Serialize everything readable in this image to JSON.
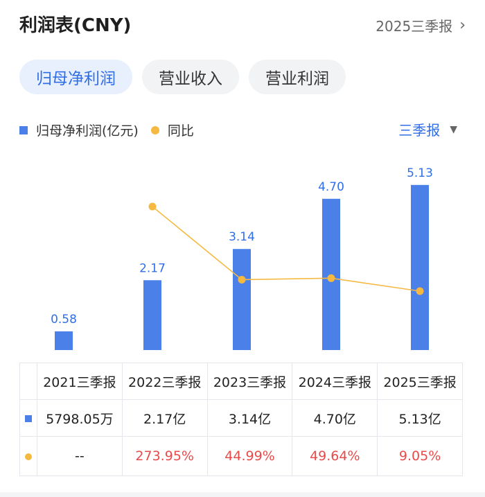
{
  "header": {
    "title": "利润表(CNY)",
    "period_label": "2025三季报",
    "chevron": "chevron-right-icon"
  },
  "tabs": [
    {
      "label": "归母净利润",
      "active": true
    },
    {
      "label": "营业收入",
      "active": false
    },
    {
      "label": "营业利润",
      "active": false
    }
  ],
  "legend": {
    "bar_label": "归母净利润(亿元)",
    "line_label": "同比"
  },
  "selector": {
    "label": "三季报",
    "icon": "caret-down-icon"
  },
  "colors": {
    "bar": "#4a80e8",
    "line": "#f5b942",
    "accent": "#2f6ee8",
    "negative_red": "#e84a4a"
  },
  "chart_data": {
    "type": "bar",
    "categories": [
      "2021三季报",
      "2022三季报",
      "2023三季报",
      "2024三季报",
      "2025三季报"
    ],
    "series": [
      {
        "name": "归母净利润(亿元)",
        "type": "bar",
        "values": [
          0.58,
          2.17,
          3.14,
          4.7,
          5.13
        ],
        "labels": [
          "0.58",
          "2.17",
          "3.14",
          "4.70",
          "5.13"
        ]
      },
      {
        "name": "同比",
        "type": "line",
        "values": [
          null,
          273.95,
          44.99,
          49.64,
          9.05
        ]
      }
    ],
    "ylim": [
      0,
      5.6
    ]
  },
  "table": {
    "headers": [
      "2021三季报",
      "2022三季报",
      "2023三季报",
      "2024三季报",
      "2025三季报"
    ],
    "profit_row": [
      "5798.05万",
      "2.17亿",
      "3.14亿",
      "4.70亿",
      "5.13亿"
    ],
    "yoy_row": [
      "--",
      "273.95%",
      "44.99%",
      "49.64%",
      "9.05%"
    ]
  }
}
